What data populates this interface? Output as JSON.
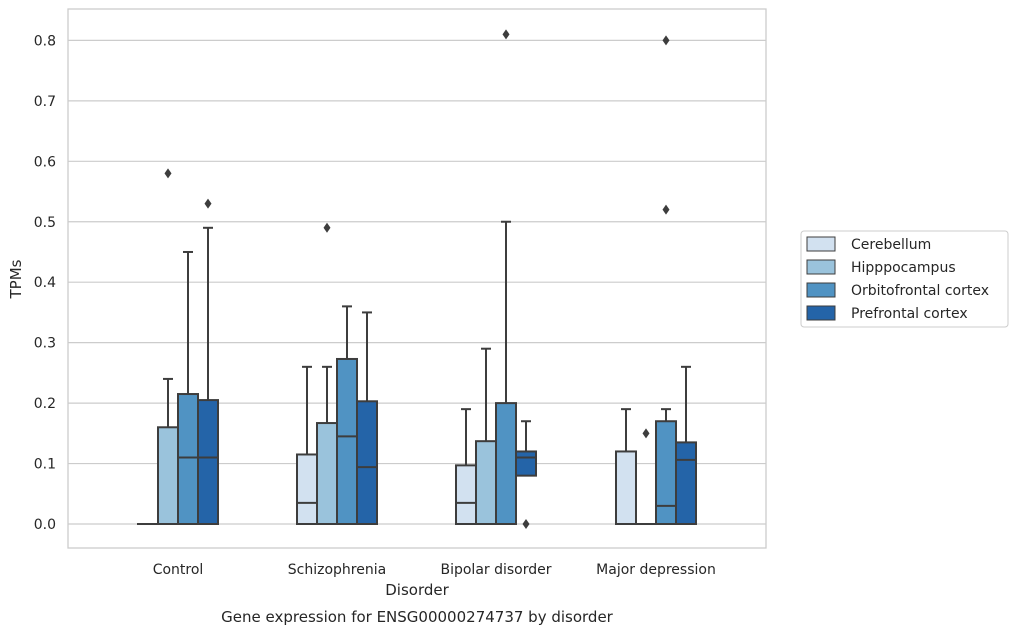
{
  "caption": "Gene expression for ENSG00000274737 by disorder",
  "chart_data": {
    "type": "boxplot",
    "xlabel": "Disorder",
    "ylabel": "TPMs",
    "ylim": [
      -0.04,
      0.855
    ],
    "yticks": [
      0.0,
      0.1,
      0.2,
      0.3,
      0.4,
      0.5,
      0.6,
      0.7,
      0.8
    ],
    "ytick_labels": [
      "0.0",
      "0.1",
      "0.2",
      "0.3",
      "0.4",
      "0.5",
      "0.6",
      "0.7",
      "0.8"
    ],
    "grid": true,
    "legend_position": "right",
    "categories": [
      "Control",
      "Schizophrenia",
      "Bipolar disorder",
      "Major depression"
    ],
    "series": [
      {
        "name": "Cerebellum",
        "color": "#d2e1f0",
        "boxes": [
          {
            "whislo": 0.0,
            "q1": 0.0,
            "med": 0.0,
            "q3": 0.0,
            "whishi": 0.0,
            "fliers": []
          },
          {
            "whislo": 0.0,
            "q1": 0.0,
            "med": 0.035,
            "q3": 0.115,
            "whishi": 0.26,
            "fliers": []
          },
          {
            "whislo": 0.0,
            "q1": 0.0,
            "med": 0.035,
            "q3": 0.097,
            "whishi": 0.19,
            "fliers": []
          },
          {
            "whislo": 0.0,
            "q1": 0.0,
            "med": 0.0,
            "q3": 0.12,
            "whishi": 0.19,
            "fliers": []
          }
        ]
      },
      {
        "name": "Hipppocampus",
        "color": "#9ac3dc",
        "boxes": [
          {
            "whislo": 0.0,
            "q1": 0.0,
            "med": 0.0,
            "q3": 0.16,
            "whishi": 0.24,
            "fliers": [
              0.58
            ]
          },
          {
            "whislo": 0.0,
            "q1": 0.0,
            "med": 0.0,
            "q3": 0.167,
            "whishi": 0.26,
            "fliers": [
              0.49
            ]
          },
          {
            "whislo": 0.0,
            "q1": 0.0,
            "med": 0.0,
            "q3": 0.137,
            "whishi": 0.29,
            "fliers": []
          },
          {
            "whislo": 0.0,
            "q1": 0.0,
            "med": 0.0,
            "q3": 0.0,
            "whishi": 0.0,
            "fliers": [
              0.15
            ]
          }
        ]
      },
      {
        "name": "Orbitofrontal cortex",
        "color": "#5093c3",
        "boxes": [
          {
            "whislo": 0.0,
            "q1": 0.0,
            "med": 0.11,
            "q3": 0.215,
            "whishi": 0.45,
            "fliers": []
          },
          {
            "whislo": 0.0,
            "q1": 0.0,
            "med": 0.145,
            "q3": 0.273,
            "whishi": 0.36,
            "fliers": []
          },
          {
            "whislo": 0.0,
            "q1": 0.0,
            "med": 0.0,
            "q3": 0.2,
            "whishi": 0.5,
            "fliers": [
              0.81
            ]
          },
          {
            "whislo": 0.0,
            "q1": 0.0,
            "med": 0.03,
            "q3": 0.17,
            "whishi": 0.19,
            "fliers": [
              0.52,
              0.8
            ]
          }
        ]
      },
      {
        "name": "Prefrontal cortex",
        "color": "#2464a8",
        "boxes": [
          {
            "whislo": 0.0,
            "q1": 0.0,
            "med": 0.11,
            "q3": 0.205,
            "whishi": 0.49,
            "fliers": [
              0.53
            ]
          },
          {
            "whislo": 0.0,
            "q1": 0.0,
            "med": 0.094,
            "q3": 0.203,
            "whishi": 0.35,
            "fliers": []
          },
          {
            "whislo": 0.08,
            "q1": 0.08,
            "med": 0.11,
            "q3": 0.12,
            "whishi": 0.17,
            "fliers": [
              0.0
            ]
          },
          {
            "whislo": 0.0,
            "q1": 0.0,
            "med": 0.106,
            "q3": 0.135,
            "whishi": 0.26,
            "fliers": []
          }
        ]
      }
    ]
  }
}
